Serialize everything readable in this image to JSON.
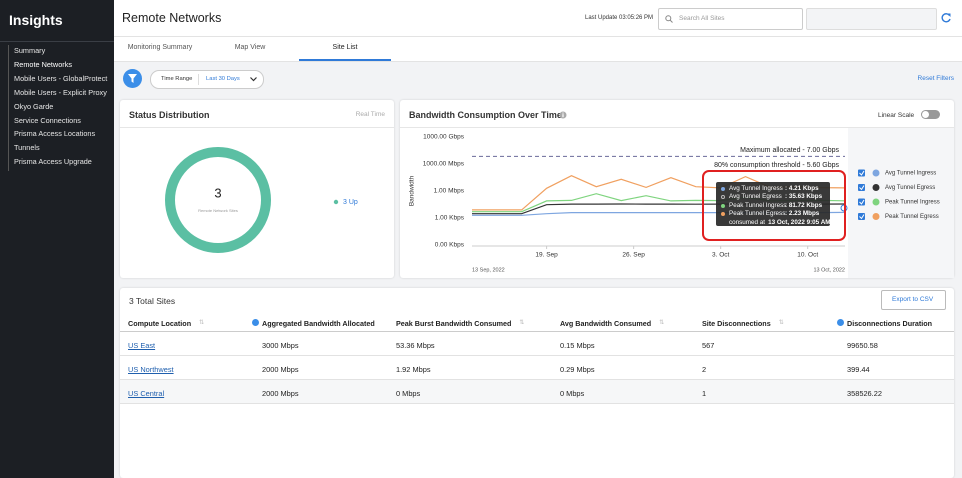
{
  "sidebar": {
    "title": "Insights",
    "items": [
      "Summary",
      "Remote Networks",
      "Mobile Users - GlobalProtect",
      "Mobile Users - Explicit Proxy",
      "Okyo Garde",
      "Service Connections",
      "Prisma Access Locations",
      "Tunnels",
      "Prisma Access Upgrade"
    ]
  },
  "header": {
    "title": "Remote Networks",
    "last_update": "Last Update 03:05:26 PM",
    "search_placeholder": "Search All Sites"
  },
  "tabs": [
    "Monitoring Summary",
    "Map View",
    "Site List"
  ],
  "filters": {
    "time_range_label": "Time Range",
    "time_range_value": "Last 30 Days",
    "reset": "Reset Filters"
  },
  "status": {
    "title": "Status Distribution",
    "mode": "Real Time",
    "chart_data": {
      "type": "donut",
      "total": 3,
      "total_label": "Remote Network Sites",
      "values": [
        3
      ],
      "value_labels": [
        "3 Up"
      ],
      "color": "#5bbfa3"
    }
  },
  "bandwidth": {
    "title": "Bandwidth Consumption Over Time",
    "scale_toggle": "Linear Scale",
    "chart_data": {
      "type": "line",
      "ylabel": "Bandwidth",
      "log_scale": true,
      "grid": false,
      "ylim": [
        0.001,
        1000000000
      ],
      "yticks": [
        {
          "value": 0.001,
          "label": "0.00 Kbps"
        },
        {
          "value": 1,
          "label": "1.00 Kbps"
        },
        {
          "value": 1000,
          "label": "1.00 Mbps"
        },
        {
          "value": 1000000,
          "label": "1000.00 Mbps"
        },
        {
          "value": 1000000000,
          "label": "1000.00 Gbps"
        }
      ],
      "xlim": [
        "2022-09-13",
        "2022-10-13"
      ],
      "range_labels": [
        "13 Sep, 2022",
        "13 Oct, 2022"
      ],
      "xticks": [
        {
          "value": "2022-09-19",
          "label": "19. Sep"
        },
        {
          "value": "2022-09-26",
          "label": "26. Sep"
        },
        {
          "value": "2022-10-03",
          "label": "3. Oct"
        },
        {
          "value": "2022-10-10",
          "label": "10. Oct"
        }
      ],
      "x": [
        "2022-09-13",
        "2022-09-15",
        "2022-09-17",
        "2022-09-19",
        "2022-09-21",
        "2022-09-23",
        "2022-09-25",
        "2022-09-27",
        "2022-09-29",
        "2022-10-01",
        "2022-10-03",
        "2022-10-05",
        "2022-10-07",
        "2022-10-09",
        "2022-10-11",
        "2022-10-13"
      ],
      "series": [
        {
          "name": "Avg Tunnel Ingress",
          "color": "#7ea6e0",
          "values": [
            2,
            2,
            2,
            3,
            4,
            4,
            4,
            4,
            4,
            4,
            4,
            4,
            4,
            4,
            4,
            4.21
          ]
        },
        {
          "name": "Avg Tunnel Egress",
          "color": "#333333",
          "values": [
            3,
            3,
            3,
            30,
            35,
            35,
            36,
            35,
            35,
            34,
            35,
            36,
            35,
            35,
            35,
            35.63
          ]
        },
        {
          "name": "Peak Tunnel Ingress",
          "color": "#7fd47f",
          "values": [
            5,
            5,
            5,
            80,
            90,
            500,
            85,
            300,
            80,
            90,
            85,
            200,
            80,
            85,
            90,
            81.72
          ]
        },
        {
          "name": "Peak Tunnel Egress",
          "color": "#f0a060",
          "values": [
            8,
            8,
            8,
            2000,
            50000,
            3000,
            20000,
            2500,
            30000,
            3000,
            2200,
            40000,
            2500,
            3000,
            2400,
            2230
          ]
        }
      ],
      "annotations": [
        {
          "value": 7000000,
          "label": "Maximum allocated - 7.00 Gbps"
        },
        {
          "value": 5600000,
          "label": "80% consumption threshold - 5.60 Gbps"
        }
      ],
      "tooltip": {
        "values": [
          "4.21 Kbps",
          "35.63 Kbps",
          "81.72 Kbps",
          "2.23 Mbps"
        ],
        "footer_prefix": "consumed at",
        "footer_time": "13 Oct, 2022 9:05 AM"
      }
    }
  },
  "sites": {
    "title": "3 Total Sites",
    "export": "Export to CSV",
    "columns": [
      "Compute Location",
      "Aggregated Bandwidth Allocated",
      "Peak Burst Bandwidth Consumed",
      "Avg Bandwidth Consumed",
      "Site Disconnections",
      "Disconnections Duration"
    ],
    "rows": [
      [
        "US East",
        "3000 Mbps",
        "53.36 Mbps",
        "0.15 Mbps",
        567,
        99650.58
      ],
      [
        "US Northwest",
        "2000 Mbps",
        "1.92 Mbps",
        "0.29 Mbps",
        2,
        399.44
      ],
      [
        "US Central",
        "2000 Mbps",
        "0 Mbps",
        "0 Mbps",
        1,
        358526.22
      ]
    ]
  }
}
